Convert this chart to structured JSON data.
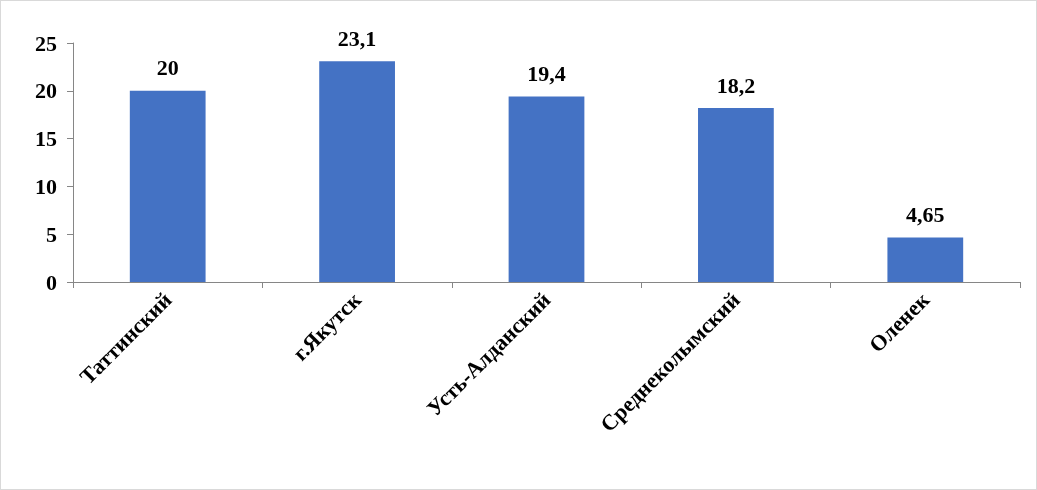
{
  "chart_data": {
    "type": "bar",
    "categories": [
      "Таттинский",
      "г.Якутск",
      "Усть-Алданский",
      "Среднеколымский",
      "Оленек"
    ],
    "values": [
      20,
      23.1,
      19.4,
      18.2,
      4.65
    ],
    "value_labels": [
      "20",
      "23,1",
      "19,4",
      "18,2",
      "4,65"
    ],
    "color": "#4472c4",
    "ylim": [
      0,
      25
    ],
    "yticks": [
      0,
      5,
      10,
      15,
      20,
      25
    ],
    "grid": false
  }
}
